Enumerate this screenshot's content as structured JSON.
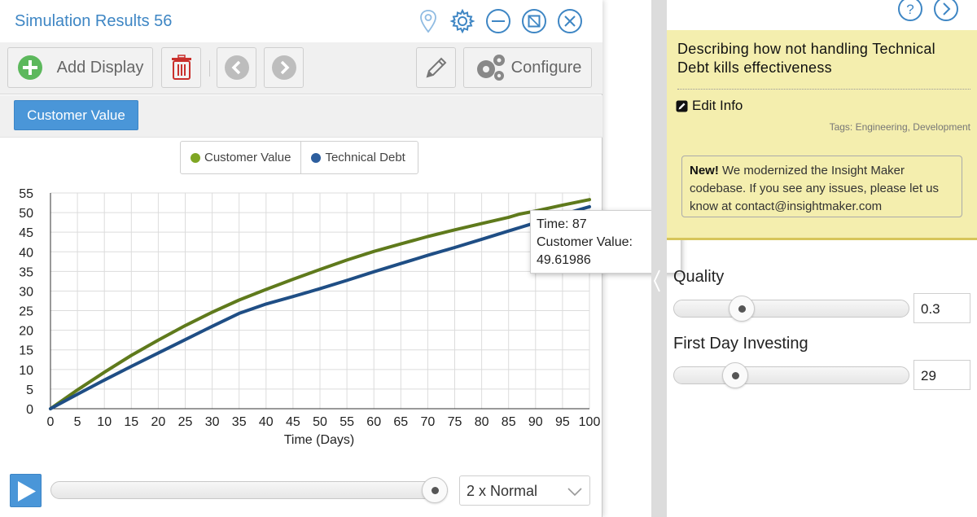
{
  "window": {
    "title": "Simulation Results 56"
  },
  "toolbar": {
    "add_display_label": "Add Display",
    "configure_label": "Configure"
  },
  "tabs": [
    {
      "label": "Customer Value",
      "active": true
    }
  ],
  "legend": [
    {
      "name": "Customer Value",
      "color": "#5f7a1c"
    },
    {
      "name": "Technical Debt",
      "color": "#1f4e85"
    }
  ],
  "tooltip": {
    "time_line": "Time: 87",
    "series_line": "Customer Value:",
    "value_line": "49.61986"
  },
  "playback": {
    "speed": "2 x Normal",
    "position_fraction": 1.0
  },
  "info": {
    "description": "Describing how not handling Technical Debt kills effectiveness",
    "edit_label": "Edit Info",
    "tags": "Tags: Engineering, Development",
    "notice_bold": "New!",
    "notice_text": "We modernized the Insight Maker codebase. If you see any issues, please let us know at contact@insightmaker.com"
  },
  "parameters": [
    {
      "label": "Quality",
      "value": "0.3",
      "min": 0,
      "max": 1
    },
    {
      "label": "First Day Investing",
      "value": "29",
      "min": 0,
      "max": 100
    }
  ],
  "chart_data": {
    "type": "line",
    "xlabel": "Time (Days)",
    "ylabel": "",
    "xlim": [
      0,
      100
    ],
    "ylim": [
      0,
      55
    ],
    "x_ticks": [
      0,
      5,
      10,
      15,
      20,
      25,
      30,
      35,
      40,
      45,
      50,
      55,
      60,
      65,
      70,
      75,
      80,
      85,
      90,
      95,
      100
    ],
    "y_ticks": [
      0,
      5,
      10,
      15,
      20,
      25,
      30,
      35,
      40,
      45,
      50,
      55
    ],
    "grid": true,
    "series": [
      {
        "name": "Customer Value",
        "color": "#5f7a1c",
        "x": [
          0,
          5,
          10,
          15,
          20,
          25,
          30,
          35,
          40,
          45,
          50,
          55,
          60,
          65,
          70,
          75,
          80,
          85,
          87,
          90,
          95,
          100
        ],
        "y": [
          0,
          4.8,
          9.3,
          13.6,
          17.5,
          21.2,
          24.6,
          27.7,
          30.4,
          33.0,
          35.5,
          37.9,
          40.1,
          42.0,
          43.9,
          45.6,
          47.2,
          48.8,
          49.6,
          50.4,
          51.9,
          53.3
        ]
      },
      {
        "name": "Technical Debt",
        "color": "#1f4e85",
        "x": [
          0,
          5,
          10,
          15,
          20,
          25,
          30,
          35,
          40,
          45,
          50,
          55,
          60,
          65,
          70,
          75,
          80,
          85,
          90,
          95,
          100
        ],
        "y": [
          0,
          3.7,
          7.3,
          10.8,
          14.2,
          17.6,
          21.0,
          24.3,
          26.7,
          28.6,
          30.6,
          32.7,
          34.9,
          37.0,
          39.1,
          41.1,
          43.2,
          45.3,
          47.4,
          49.5,
          51.5
        ]
      }
    ]
  }
}
